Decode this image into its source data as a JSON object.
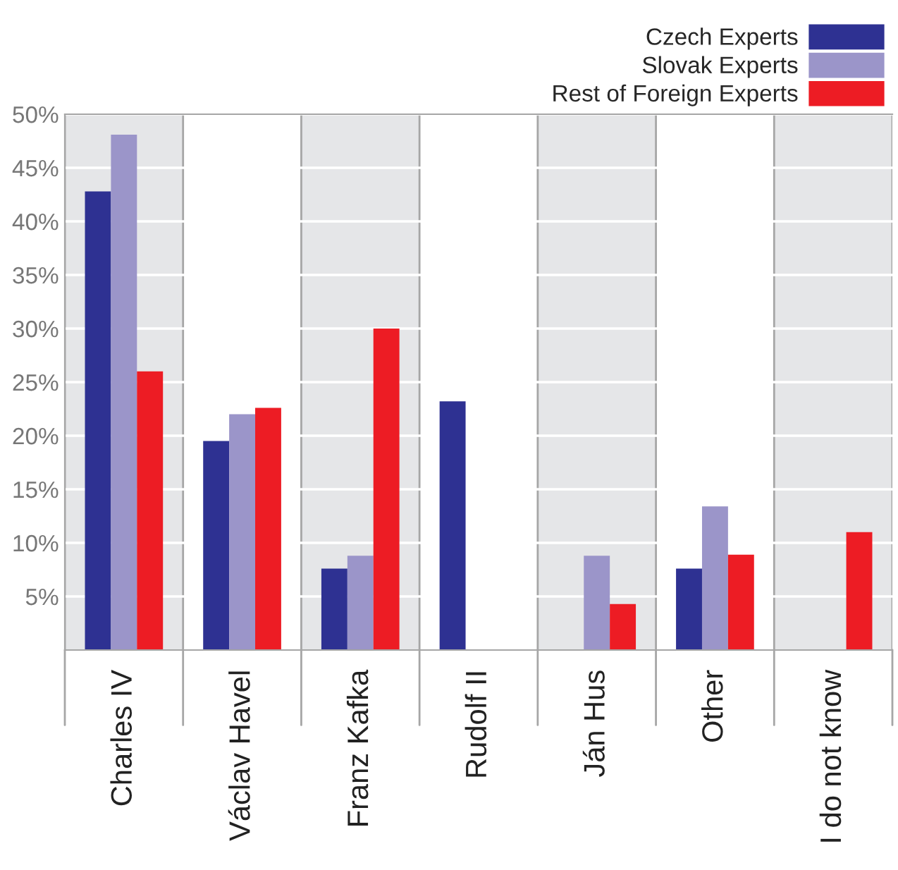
{
  "chart_data": {
    "type": "bar",
    "categories": [
      "Charles IV",
      "Václav Havel",
      "Franz Kafka",
      "Rudolf II",
      "Ján Hus",
      "Other",
      "I do not know"
    ],
    "series": [
      {
        "name": "Czech Experts",
        "color": "#2e3192",
        "values": [
          42.8,
          19.5,
          7.6,
          23.2,
          null,
          7.6,
          null
        ]
      },
      {
        "name": "Slovak Experts",
        "color": "#9b95c9",
        "values": [
          48.1,
          22.0,
          8.8,
          null,
          8.8,
          13.4,
          null
        ]
      },
      {
        "name": "Rest of Foreign Experts",
        "color": "#ed1c24",
        "values": [
          26.0,
          22.6,
          30.0,
          null,
          4.3,
          8.9,
          11.0
        ]
      }
    ],
    "ylim": [
      0,
      50
    ],
    "yticks": [
      {
        "value": 5,
        "label": "5%"
      },
      {
        "value": 10,
        "label": "10%"
      },
      {
        "value": 15,
        "label": "15%"
      },
      {
        "value": 20,
        "label": "20%"
      },
      {
        "value": 25,
        "label": "25%"
      },
      {
        "value": 30,
        "label": "30%"
      },
      {
        "value": 35,
        "label": "35%"
      },
      {
        "value": 40,
        "label": "40%"
      },
      {
        "value": 45,
        "label": "45%"
      },
      {
        "value": 50,
        "label": "50%"
      }
    ],
    "grid": "y",
    "legend": "top right",
    "bands": [
      {
        "axis": "x",
        "from": "Charles IV",
        "to": "Charles IV",
        "color": "#e5e6e8"
      },
      {
        "axis": "x",
        "from": "Franz Kafka",
        "to": "Franz Kafka",
        "color": "#e5e6e8"
      },
      {
        "axis": "x",
        "from": "Ján Hus",
        "to": "Ján Hus",
        "color": "#e5e6e8"
      },
      {
        "axis": "x",
        "from": "I do not know",
        "to": "I do not know",
        "color": "#e5e6e8"
      }
    ]
  }
}
